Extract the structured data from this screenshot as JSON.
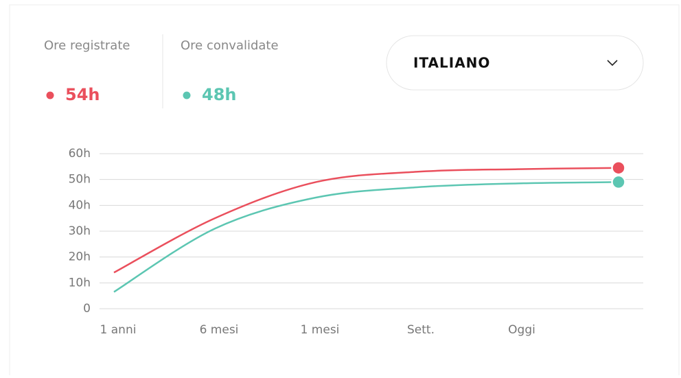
{
  "stats": [
    {
      "label": "Ore registrate",
      "value": "54h",
      "color": "#ea4f5c"
    },
    {
      "label": "Ore convalidate",
      "value": "48h",
      "color": "#5cc6b2"
    }
  ],
  "dropdown": {
    "label": "ITALIANO"
  },
  "chart_data": {
    "type": "line",
    "categories": [
      "1 anni",
      "6 mesi",
      "1 mesi",
      "Sett.",
      "Oggi",
      null
    ],
    "series": [
      {
        "name": "Ore registrate",
        "color": "#ea4f5c",
        "values": [
          14,
          35,
          49,
          53,
          54,
          54.5
        ]
      },
      {
        "name": "Ore convalidate",
        "color": "#5cc6b2",
        "values": [
          6.5,
          31,
          43,
          47,
          48.5,
          49
        ]
      }
    ],
    "ylim": [
      0,
      60
    ],
    "yticks": [
      0,
      {
        "value": 10,
        "label": "10h"
      },
      {
        "value": 20,
        "label": "20h"
      },
      {
        "value": 30,
        "label": "30h"
      },
      {
        "value": 40,
        "label": "40h"
      },
      {
        "value": 50,
        "label": "50h"
      },
      {
        "value": 60,
        "label": "60h"
      }
    ],
    "grid": true
  }
}
